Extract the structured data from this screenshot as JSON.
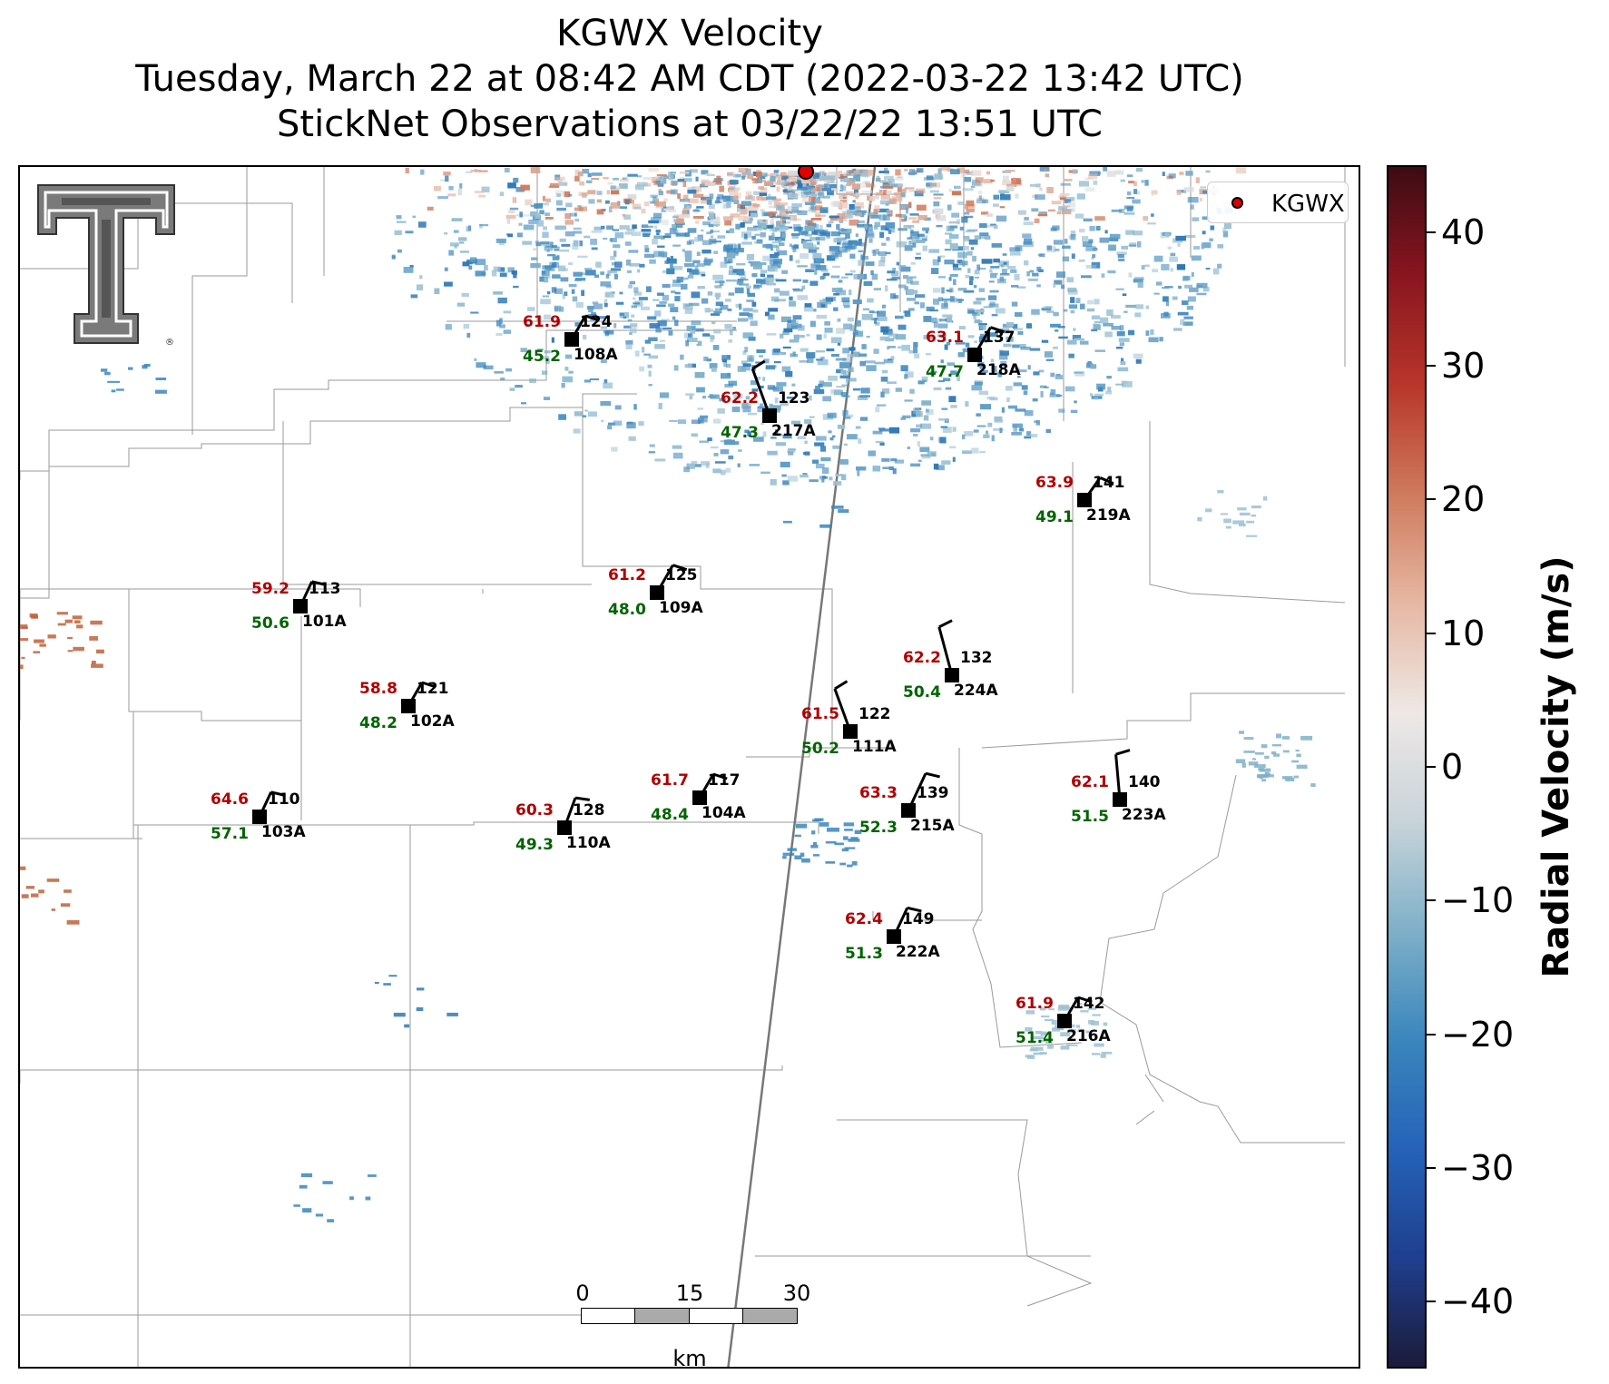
{
  "title": {
    "line1": "KGWX Velocity",
    "line2": "Tuesday, March 22 at 08:42 AM CDT (2022-03-22 13:42 UTC)",
    "line3": "StickNet Observations at 03/22/22 13:51 UTC"
  },
  "legend": {
    "label": "KGWX",
    "color": "#e00000"
  },
  "logo": {
    "name": "texas-tech-double-t-logo"
  },
  "scalebar": {
    "labels": [
      "0",
      "15",
      "30"
    ],
    "unit": "km"
  },
  "colorbar": {
    "title": "Radial Velocity (m/s)",
    "range": [
      -45,
      45
    ],
    "ticks": [
      {
        "value": 40,
        "label": "40"
      },
      {
        "value": 30,
        "label": "30"
      },
      {
        "value": 20,
        "label": "20"
      },
      {
        "value": 10,
        "label": "10"
      },
      {
        "value": 0,
        "label": "0"
      },
      {
        "value": -10,
        "label": "−10"
      },
      {
        "value": -20,
        "label": "−20"
      },
      {
        "value": -30,
        "label": "−30"
      },
      {
        "value": -40,
        "label": "−40"
      }
    ],
    "colors": [
      "#1b1b3a",
      "#1f3f8f",
      "#2563b8",
      "#3a86bd",
      "#7fb0c8",
      "#c8d4da",
      "#eee8e6",
      "#e6b8a4",
      "#cf7a5c",
      "#b8362a",
      "#8a1520",
      "#3d0c13"
    ]
  },
  "colors": {
    "temperature": "#b00000",
    "dewpoint": "#006400",
    "station": "#000000",
    "radar_site": "#e00000"
  },
  "stations": [
    {
      "id": "108A",
      "probe": "124",
      "temp": "61.9",
      "dewpt": "45.2"
    },
    {
      "id": "218A",
      "probe": "137",
      "temp": "63.1",
      "dewpt": "47.7"
    },
    {
      "id": "217A",
      "probe": "123",
      "temp": "62.2",
      "dewpt": "47.3"
    },
    {
      "id": "219A",
      "probe": "141",
      "temp": "63.9",
      "dewpt": "49.1"
    },
    {
      "id": "101A",
      "probe": "113",
      "temp": "59.2",
      "dewpt": "50.6"
    },
    {
      "id": "109A",
      "probe": "125",
      "temp": "61.2",
      "dewpt": "48.0"
    },
    {
      "id": "224A",
      "probe": "132",
      "temp": "62.2",
      "dewpt": "50.4"
    },
    {
      "id": "102A",
      "probe": "121",
      "temp": "58.8",
      "dewpt": "48.2"
    },
    {
      "id": "111A",
      "probe": "122",
      "temp": "61.5",
      "dewpt": "50.2"
    },
    {
      "id": "103A",
      "probe": "110",
      "temp": "64.6",
      "dewpt": "57.1"
    },
    {
      "id": "110A",
      "probe": "128",
      "temp": "60.3",
      "dewpt": "49.3"
    },
    {
      "id": "104A",
      "probe": "117",
      "temp": "61.7",
      "dewpt": "48.4"
    },
    {
      "id": "215A",
      "probe": "139",
      "temp": "63.3",
      "dewpt": "52.3"
    },
    {
      "id": "223A",
      "probe": "140",
      "temp": "62.1",
      "dewpt": "51.5"
    },
    {
      "id": "222A",
      "probe": "149",
      "temp": "62.4",
      "dewpt": "51.3"
    },
    {
      "id": "216A",
      "probe": "142",
      "temp": "61.9",
      "dewpt": "51.4"
    }
  ]
}
